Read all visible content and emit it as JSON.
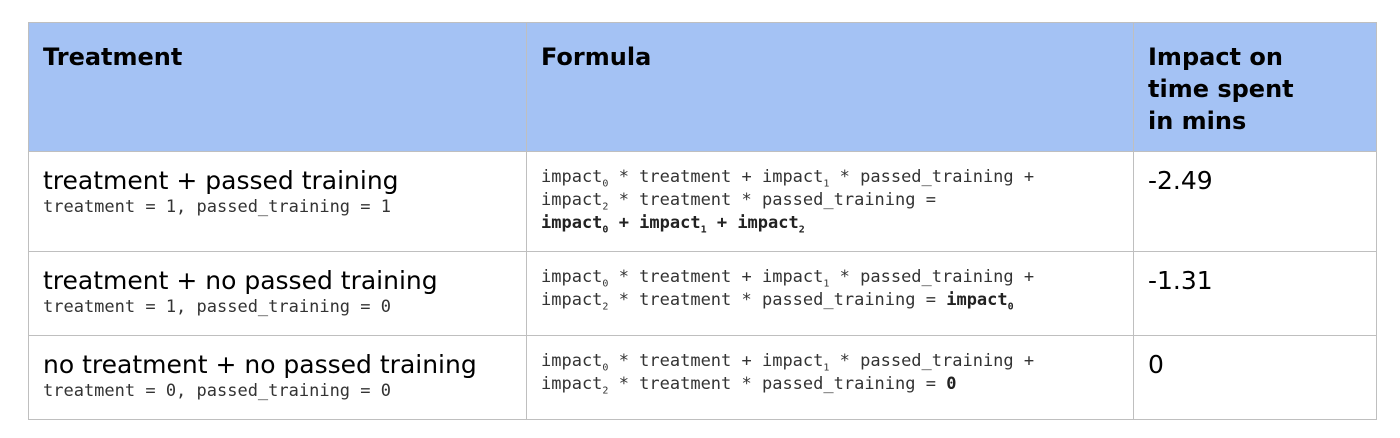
{
  "headers": {
    "treatment": "Treatment",
    "formula": "Formula",
    "impact_lines": [
      "Impact on",
      "time spent",
      "in mins"
    ]
  },
  "rows": [
    {
      "label": "treatment + passed training",
      "condition": "treatment = 1, passed_training = 1",
      "formula": {
        "l1a": "impact",
        "l1s0": "0",
        "l1b": " * treatment + impact",
        "l1s1": "1",
        "l1c": " * passed_training +",
        "l2a": "impact",
        "l2s2": "2",
        "l2b": " * treatment * passed_training =",
        "l3a": "impact",
        "l3s0": "0",
        "l3b": " + impact",
        "l3s1": "1",
        "l3c": " + impact",
        "l3s2": "2"
      },
      "impact": "-2.49"
    },
    {
      "label": "treatment + no passed training",
      "condition": "treatment = 1, passed_training = 0",
      "formula": {
        "l1a": "impact",
        "l1s0": "0",
        "l1b": " * treatment + impact",
        "l1s1": "1",
        "l1c": " * passed_training +",
        "l2a": "impact",
        "l2s2": "2",
        "l2b": " * treatment * passed_training = ",
        "l2r": "impact",
        "l2rs": "0"
      },
      "impact": "-1.31"
    },
    {
      "label": "no treatment + no passed training",
      "condition": "treatment = 0, passed_training = 0",
      "formula": {
        "l1a": "impact",
        "l1s0": "0",
        "l1b": " * treatment + impact",
        "l1s1": "1",
        "l1c": " * passed_training +",
        "l2a": "impact",
        "l2s2": "2",
        "l2b": " * treatment * passed_training = ",
        "l2r": "0"
      },
      "impact": "0"
    }
  ]
}
